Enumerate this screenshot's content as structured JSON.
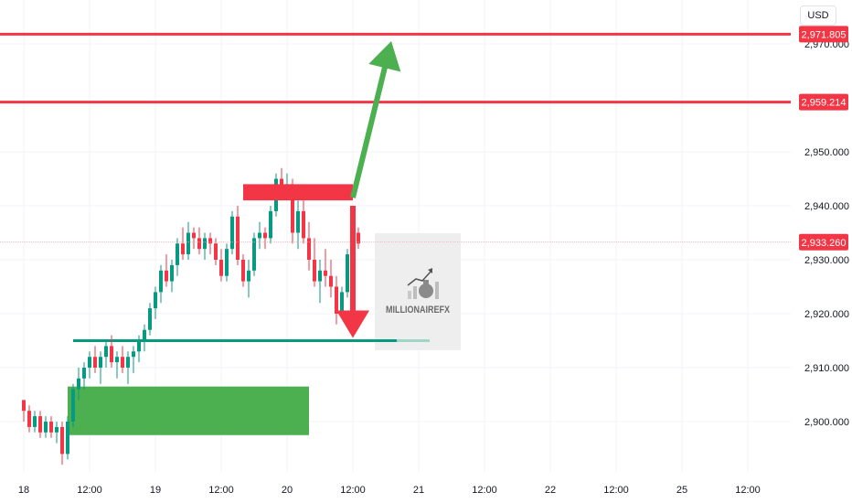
{
  "currency_button": "USD",
  "watermark": {
    "brand": "MILLIONAIREFX",
    "icon": "money-bag-growth-icon"
  },
  "colors": {
    "up": "#089981",
    "down": "#f23645",
    "resistance": "#f23645",
    "support": "#089981",
    "demand_zone": "#4caf50",
    "green_arrow": "#4caf50",
    "red_arrow": "#f23645",
    "grid": "#f0f3fa"
  },
  "price_axis": {
    "ticks": [
      "2,970.000",
      "2,950.000",
      "2,940.000",
      "2,930.000",
      "2,920.000",
      "2,910.000",
      "2,900.000"
    ],
    "tick_values": [
      2970,
      2950,
      2940,
      2930,
      2920,
      2910,
      2900
    ],
    "tags": [
      {
        "label": "2,971.805",
        "value": 2971.805,
        "color": "#f23645"
      },
      {
        "label": "2,959.214",
        "value": 2959.214,
        "color": "#f23645"
      },
      {
        "label": "2,933.260",
        "value": 2933.26,
        "color": "#f23645"
      }
    ]
  },
  "time_axis": {
    "ticks": [
      "18",
      "12:00",
      "19",
      "12:00",
      "20",
      "12:00",
      "21",
      "12:00",
      "22",
      "12:00",
      "25",
      "12:00"
    ],
    "tick_times": [
      0,
      12,
      24,
      36,
      48,
      60,
      72,
      84,
      96,
      108,
      120,
      132
    ]
  },
  "chart_data": {
    "type": "candlestick",
    "ylim": [
      2892,
      2976
    ],
    "current_price": 2933.26,
    "resistance_levels": [
      2971.805,
      2959.214
    ],
    "support_level": {
      "price": 2915.0,
      "from_hour": 9,
      "to_hour": 74
    },
    "demand_zone": {
      "from_hour": 8,
      "to_hour": 52,
      "top": 2906.5,
      "bottom": 2897.5
    },
    "supply_box": {
      "from_hour": 40,
      "to_hour": 60,
      "top": 2944.0,
      "bottom": 2941.0
    },
    "projections": [
      {
        "direction": "up",
        "from": {
          "hour": 60,
          "price": 2941.5
        },
        "to": {
          "hour": 67,
          "price": 2970.5
        }
      },
      {
        "direction": "down",
        "from": {
          "hour": 60,
          "price": 2940.0
        },
        "to": {
          "hour": 60,
          "price": 2915.5
        }
      }
    ],
    "candles": [
      [
        2904,
        2904,
        2900,
        2902
      ],
      [
        2902,
        2903,
        2898,
        2899
      ],
      [
        2899,
        2902,
        2898,
        2901
      ],
      [
        2901,
        2902,
        2897,
        2898
      ],
      [
        2898,
        2901,
        2897,
        2900
      ],
      [
        2900,
        2901,
        2897,
        2898
      ],
      [
        2898,
        2900,
        2896,
        2899
      ],
      [
        2899,
        2900,
        2892,
        2894
      ],
      [
        2894,
        2901,
        2893,
        2900
      ],
      [
        2900,
        2907,
        2899,
        2906
      ],
      [
        2906,
        2910,
        2904,
        2908
      ],
      [
        2908,
        2911,
        2906,
        2910
      ],
      [
        2910,
        2913,
        2908,
        2912
      ],
      [
        2912,
        2914,
        2909,
        2910
      ],
      [
        2910,
        2913,
        2907,
        2912
      ],
      [
        2912,
        2915,
        2910,
        2914
      ],
      [
        2914,
        2916,
        2910,
        2911
      ],
      [
        2911,
        2913,
        2908,
        2912
      ],
      [
        2912,
        2914,
        2909,
        2910
      ],
      [
        2910,
        2913,
        2907,
        2912
      ],
      [
        2912,
        2914,
        2909,
        2913
      ],
      [
        2913,
        2916,
        2911,
        2915
      ],
      [
        2915,
        2918,
        2913,
        2917
      ],
      [
        2917,
        2922,
        2916,
        2921
      ],
      [
        2921,
        2925,
        2919,
        2924
      ],
      [
        2924,
        2929,
        2922,
        2928
      ],
      [
        2928,
        2931,
        2925,
        2926
      ],
      [
        2926,
        2930,
        2924,
        2929
      ],
      [
        2929,
        2934,
        2927,
        2933
      ],
      [
        2933,
        2936,
        2930,
        2931
      ],
      [
        2931,
        2937,
        2930,
        2935
      ],
      [
        2935,
        2936,
        2932,
        2934
      ],
      [
        2934,
        2936,
        2931,
        2932
      ],
      [
        2932,
        2935,
        2930,
        2934
      ],
      [
        2934,
        2935,
        2931,
        2933
      ],
      [
        2933,
        2934,
        2929,
        2930
      ],
      [
        2930,
        2932,
        2926,
        2927
      ],
      [
        2927,
        2933,
        2926,
        2932
      ],
      [
        2932,
        2939,
        2931,
        2938
      ],
      [
        2938,
        2940,
        2929,
        2930
      ],
      [
        2930,
        2931,
        2925,
        2926
      ],
      [
        2926,
        2930,
        2923,
        2928
      ],
      [
        2928,
        2935,
        2927,
        2934
      ],
      [
        2934,
        2937,
        2932,
        2935
      ],
      [
        2935,
        2936,
        2932,
        2934
      ],
      [
        2934,
        2940,
        2933,
        2939
      ],
      [
        2939,
        2946,
        2938,
        2945
      ],
      [
        2945,
        2947,
        2941,
        2943
      ],
      [
        2943,
        2946,
        2941,
        2944
      ],
      [
        2944,
        2945,
        2933,
        2935
      ],
      [
        2935,
        2941,
        2932,
        2939
      ],
      [
        2939,
        2941,
        2933,
        2934
      ],
      [
        2934,
        2937,
        2928,
        2930
      ],
      [
        2930,
        2934,
        2925,
        2926
      ],
      [
        2926,
        2930,
        2922,
        2928
      ],
      [
        2928,
        2932,
        2925,
        2927
      ],
      [
        2927,
        2930,
        2923,
        2925
      ],
      [
        2925,
        2927,
        2918,
        2920
      ],
      [
        2920,
        2925,
        2919,
        2924
      ],
      [
        2924,
        2932,
        2923,
        2931
      ],
      [
        2931,
        2937,
        2930,
        2935
      ],
      [
        2935,
        2936,
        2932,
        2933
      ]
    ]
  }
}
